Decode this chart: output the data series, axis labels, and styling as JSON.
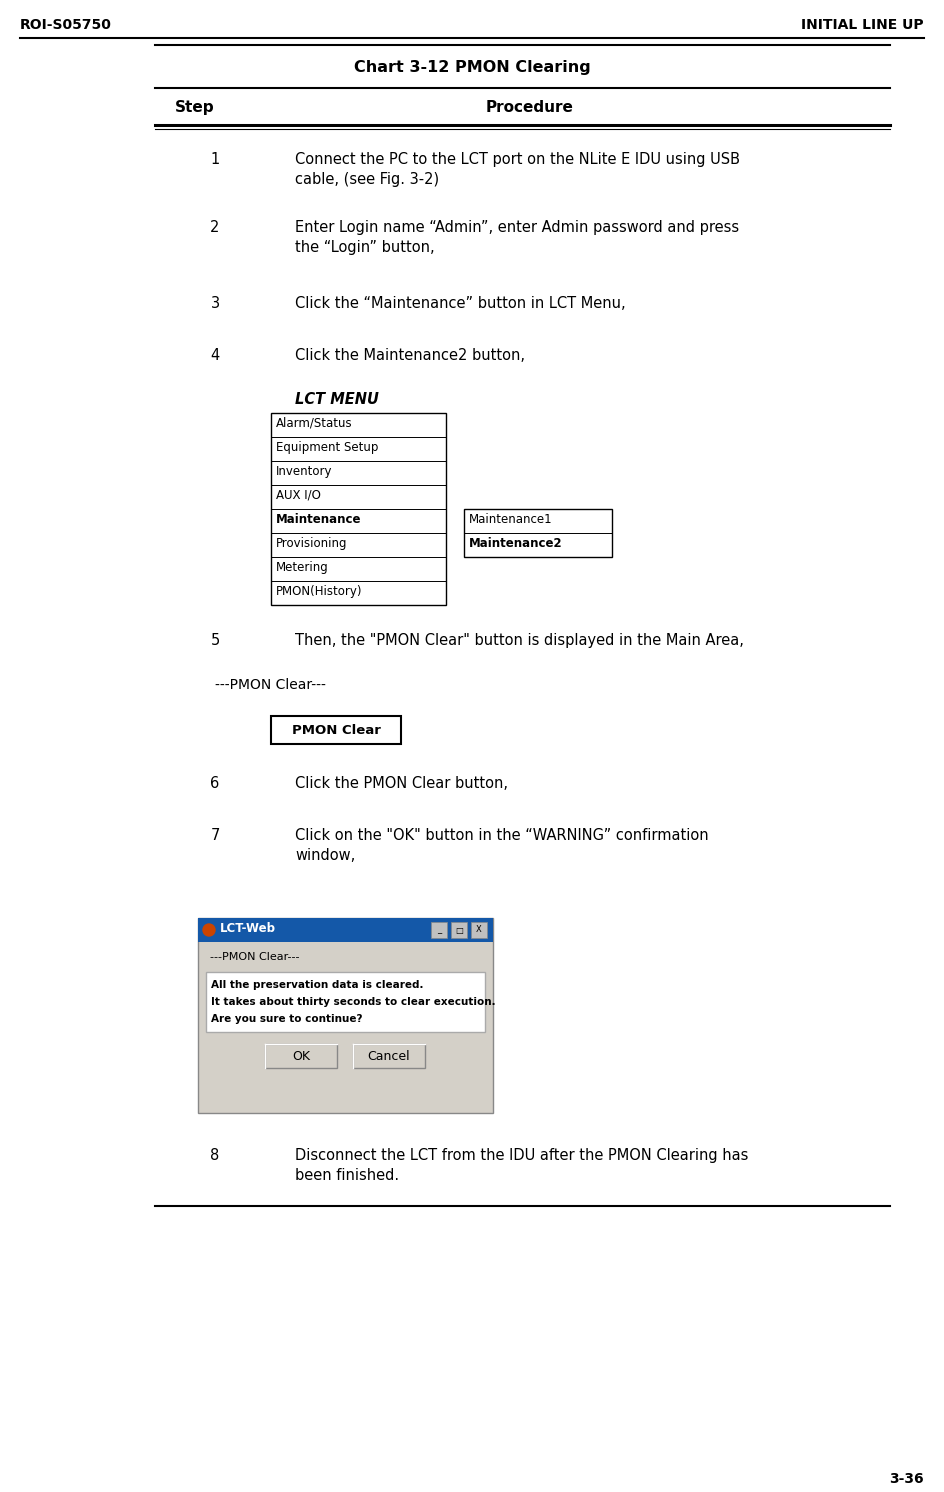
{
  "header_left": "ROI-S05750",
  "header_right": "INITIAL LINE UP",
  "footer_right": "3-36",
  "chart_title": "Chart 3-12 PMON Clearing",
  "col_step": "Step",
  "col_procedure": "Procedure",
  "lct_menu_title": "LCT MENU",
  "lct_menu_items": [
    "Alarm/Status",
    "Equipment Setup",
    "Inventory",
    "AUX I/O",
    "Maintenance",
    "Provisioning",
    "Metering",
    "PMON(History)"
  ],
  "maintenance_bold_index": 4,
  "submenu_items": [
    "Maintenance1",
    "Maintenance2"
  ],
  "submenu_bold_index": 1,
  "pmon_label": "---PMON Clear---",
  "pmon_button": "PMON Clear",
  "dialog_title": "LCT-Web",
  "dialog_pmon_label": "---PMON Clear---",
  "dialog_lines": [
    "All the preservation data is cleared.",
    "It takes about thirty seconds to clear execution.",
    "Are you sure to continue?"
  ],
  "dialog_buttons": [
    "OK",
    "Cancel"
  ],
  "bg_color": "#ffffff",
  "text_color": "#000000",
  "line_color": "#000000",
  "step1_text_l1": "Connect the PC to the LCT port on the NLite E IDU using USB",
  "step1_text_l2": "cable, (see Fig. 3-2)",
  "step2_text_l1": "Enter Login name “Admin”, enter Admin password and press",
  "step2_text_l2": "the “Login” button,",
  "step3_text": "Click the “Maintenance” button in LCT Menu,",
  "step4_text": "Click the Maintenance2 button,",
  "step5_text": "Then, the \"PMON Clear\" button is displayed in the Main Area,",
  "step6_text": "Click the PMON Clear button,",
  "step7_text_l1": "Click on the \"OK\" button in the “WARNING” confirmation",
  "step7_text_l2": "window,",
  "step8_text_l1": "Disconnect the LCT from the IDU after the PMON Clearing has",
  "step8_text_l2": "been finished."
}
